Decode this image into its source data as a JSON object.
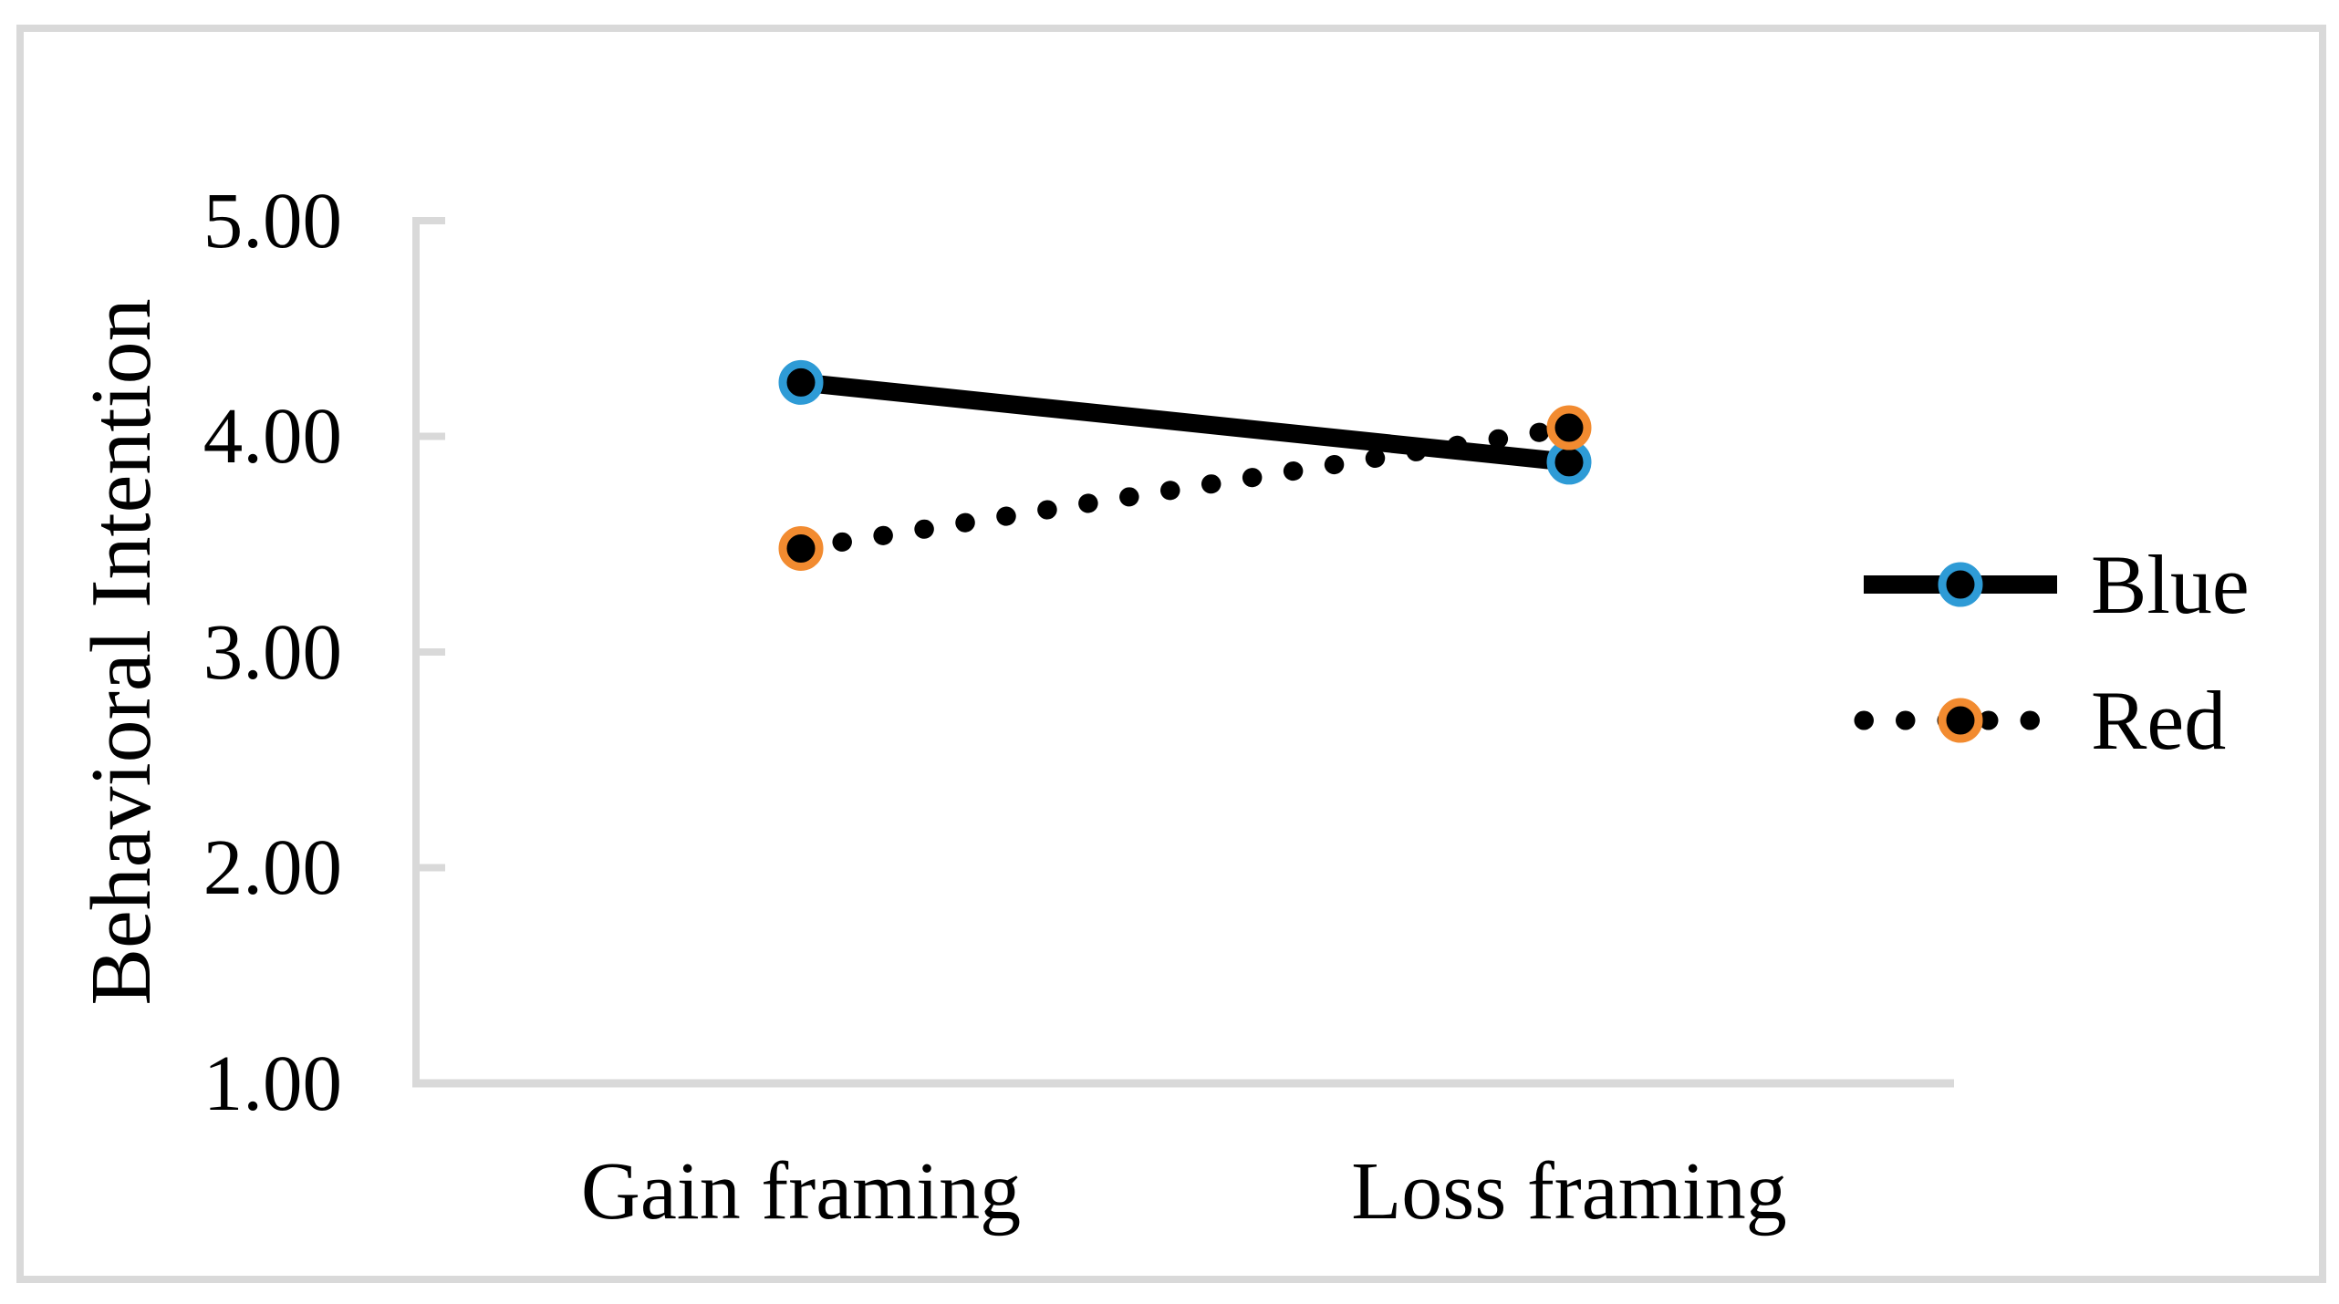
{
  "figure": {
    "background_color": "#FFFFFF",
    "border_color": "#D9D9D9"
  },
  "chart_data": {
    "type": "line",
    "title": "",
    "xlabel": "",
    "ylabel": "Behavioral Intention",
    "categories": [
      "Gain framing",
      "Loss framing"
    ],
    "series": [
      {
        "name": "Blue",
        "values": [
          4.25,
          3.88
        ],
        "line_style": "solid",
        "line_color": "#000000",
        "marker_fill": "#000000",
        "marker_ring_color": "#2E9BD6"
      },
      {
        "name": "Red",
        "values": [
          3.48,
          4.04
        ],
        "line_style": "dotted",
        "line_color": "#000000",
        "marker_fill": "#000000",
        "marker_ring_color": "#F28B30"
      }
    ],
    "ylim": [
      1.0,
      5.0
    ],
    "ytick_values": [
      5,
      4,
      3,
      2,
      1
    ],
    "ytick_labels": [
      "5.00",
      "4.00",
      "3.00",
      "2.00",
      "1.00"
    ],
    "grid": "off",
    "legend_position": "right",
    "axis_color": "#D9D9D9"
  }
}
